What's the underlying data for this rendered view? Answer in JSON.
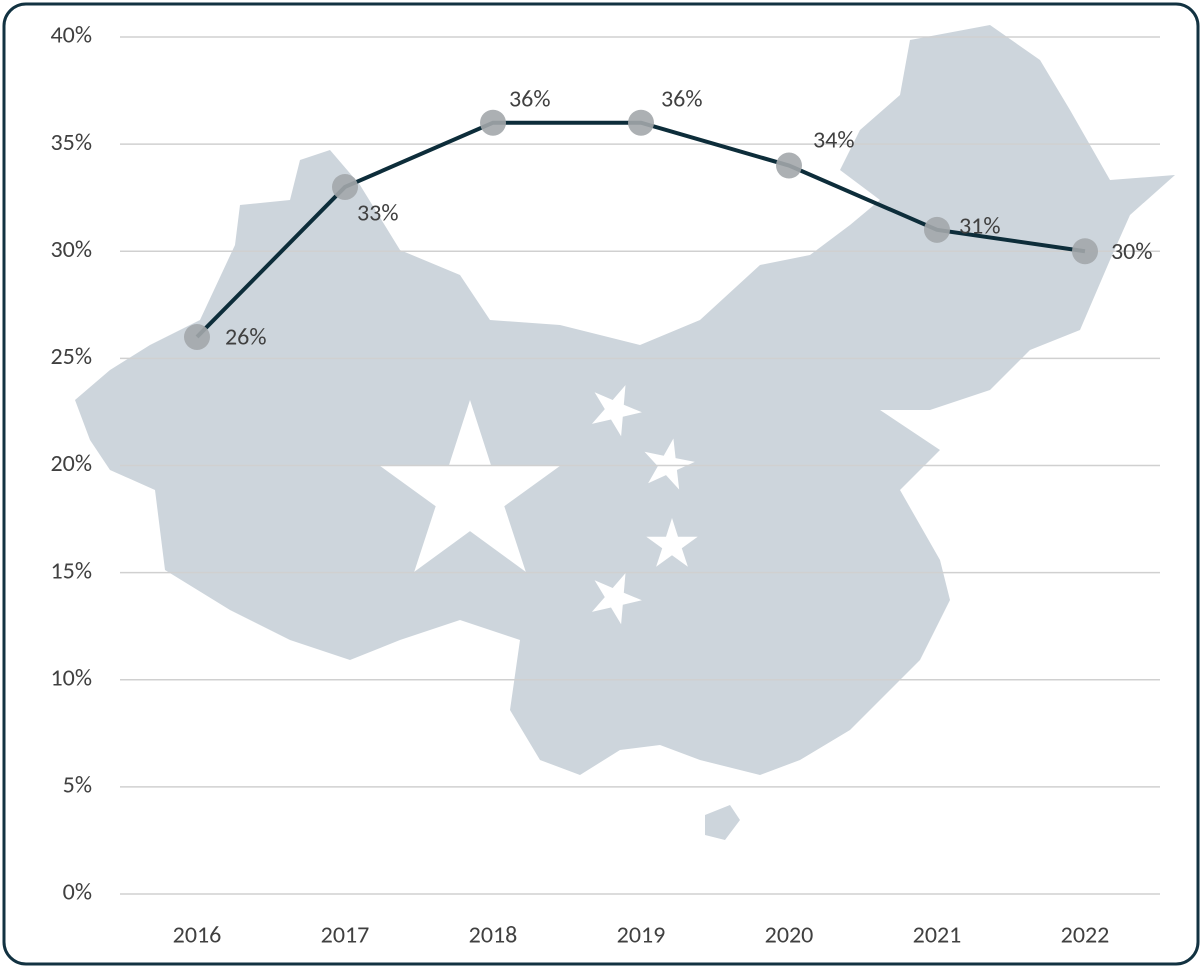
{
  "chart_data": {
    "type": "line",
    "categories": [
      "2016",
      "2017",
      "2018",
      "2019",
      "2020",
      "2021",
      "2022"
    ],
    "series": [
      {
        "color": "#0d2d3a",
        "marker_color": "#a3a7ab",
        "values": [
          26,
          33,
          36,
          36,
          34,
          31,
          30
        ],
        "value_labels": [
          "26%",
          "33%",
          "36%",
          "36%",
          "34%",
          "31%",
          "30%"
        ]
      }
    ],
    "ylim": [
      0,
      40
    ],
    "yticks": [
      {
        "value": 0,
        "label": "0%"
      },
      {
        "value": 5,
        "label": "5%"
      },
      {
        "value": 10,
        "label": "10%"
      },
      {
        "value": 15,
        "label": "15%"
      },
      {
        "value": 20,
        "label": "20%"
      },
      {
        "value": 25,
        "label": "25%"
      },
      {
        "value": 30,
        "label": "30%"
      },
      {
        "value": 35,
        "label": "35%"
      },
      {
        "value": 40,
        "label": "40%"
      }
    ],
    "grid": true
  }
}
